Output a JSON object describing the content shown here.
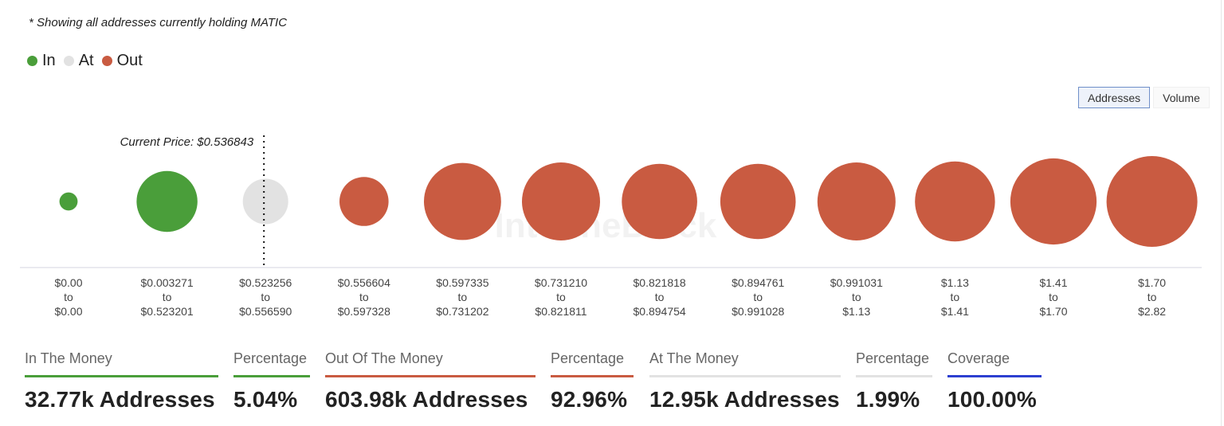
{
  "note": "* Showing all addresses currently holding MATIC",
  "legend": [
    {
      "label": "In",
      "color": "#4a9e3a"
    },
    {
      "label": "At",
      "color": "#e2e2e2"
    },
    {
      "label": "Out",
      "color": "#c95b41"
    }
  ],
  "toggle": {
    "addresses": "Addresses",
    "volume": "Volume",
    "selected": "Addresses"
  },
  "watermark": "IntoTheBlock",
  "chart_data": {
    "type": "bubble",
    "metric": "Addresses",
    "current_price_label": "Current Price: $0.536843",
    "current_price": 0.536843,
    "categories": [
      {
        "from": "$0.00",
        "to": "$0.00",
        "status": "In",
        "relative_size": 0.2
      },
      {
        "from": "$0.003271",
        "to": "$0.523201",
        "status": "In",
        "relative_size": 0.67
      },
      {
        "from": "$0.523256",
        "to": "$0.556590",
        "status": "At",
        "relative_size": 0.5
      },
      {
        "from": "$0.556604",
        "to": "$0.597328",
        "status": "Out",
        "relative_size": 0.54
      },
      {
        "from": "$0.597335",
        "to": "$0.731202",
        "status": "Out",
        "relative_size": 0.85
      },
      {
        "from": "$0.731210",
        "to": "$0.821811",
        "status": "Out",
        "relative_size": 0.86
      },
      {
        "from": "$0.821818",
        "to": "$0.894754",
        "status": "Out",
        "relative_size": 0.83
      },
      {
        "from": "$0.894761",
        "to": "$0.991028",
        "status": "Out",
        "relative_size": 0.83
      },
      {
        "from": "$0.991031",
        "to": "$1.13",
        "status": "Out",
        "relative_size": 0.86
      },
      {
        "from": "$1.13",
        "to": "$1.41",
        "status": "Out",
        "relative_size": 0.88
      },
      {
        "from": "$1.41",
        "to": "$1.70",
        "status": "Out",
        "relative_size": 0.95
      },
      {
        "from": "$1.70",
        "to": "$2.82",
        "status": "Out",
        "relative_size": 1.0
      }
    ]
  },
  "stats": [
    {
      "label": "In The Money",
      "value": "32.77k Addresses",
      "color": "#4a9e3a"
    },
    {
      "label": "Percentage",
      "value": "5.04%",
      "color": "#4a9e3a"
    },
    {
      "label": "Out Of The Money",
      "value": "603.98k Addresses",
      "color": "#c95b41"
    },
    {
      "label": "Percentage",
      "value": "92.96%",
      "color": "#c95b41"
    },
    {
      "label": "At The Money",
      "value": "12.95k Addresses",
      "color": "#e2e2e2"
    },
    {
      "label": "Percentage",
      "value": "1.99%",
      "color": "#e2e2e2"
    },
    {
      "label": "Coverage",
      "value": "100.00%",
      "color": "#2d3fd0"
    }
  ]
}
